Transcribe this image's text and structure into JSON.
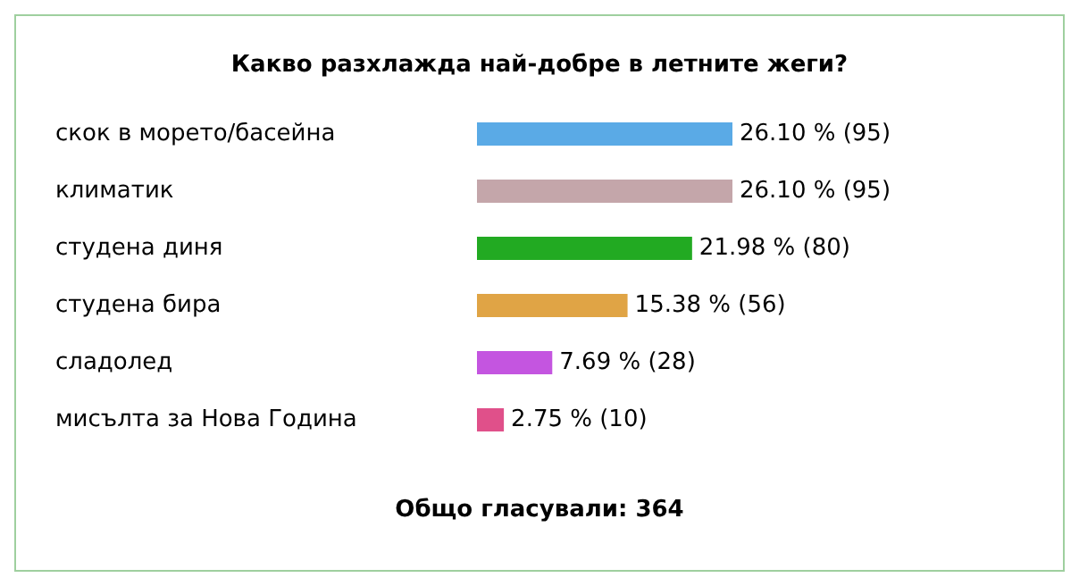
{
  "chart_data": {
    "type": "bar",
    "orientation": "horizontal",
    "title": "Какво разхлажда най-добре в летните жеги?",
    "categories": [
      "скок в морето/басейна",
      "климатик",
      "студена диня",
      "студена бира",
      "сладолед",
      "мисълта за Нова Година"
    ],
    "values": [
      95,
      95,
      80,
      56,
      28,
      10
    ],
    "colors": [
      "#5aaae6",
      "#c4a6aa",
      "#22aa22",
      "#e0a445",
      "#c455e0",
      "#e0508a"
    ],
    "value_labels": [
      "26.10 % (95)",
      "26.10 % (95)",
      "21.98 % (80)",
      "15.38 % (56)",
      "7.69 % (28)",
      "2.75 % (10)"
    ],
    "annotations": [
      "Общо гласували: 364"
    ]
  }
}
